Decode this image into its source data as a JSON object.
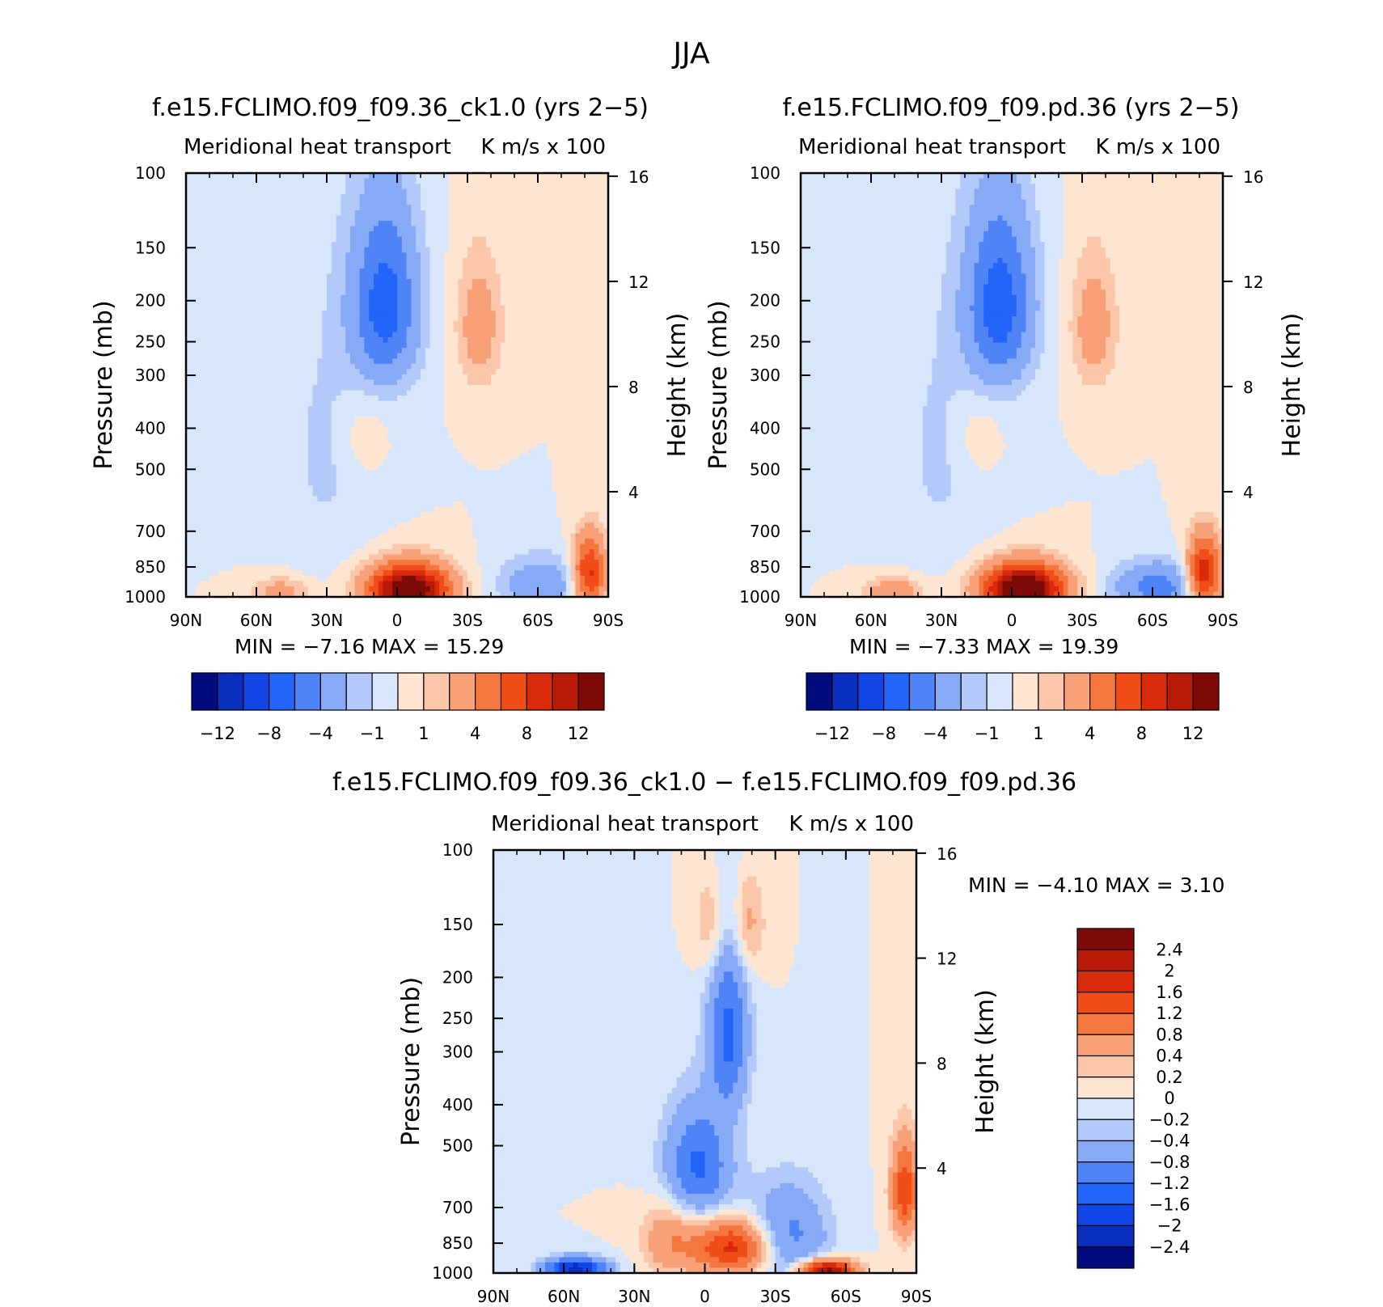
{
  "figure": {
    "title": "JJA",
    "colors": {
      "absolute": [
        "#000b7e",
        "#0a2fbe",
        "#1145e6",
        "#2265f8",
        "#4f84f6",
        "#87aaf7",
        "#b2c9f9",
        "#d8e6fb",
        "#fde5d2",
        "#fbc6a9",
        "#f8a179",
        "#f4773f",
        "#f04d19",
        "#d92b0c",
        "#b81a0a",
        "#7d0a06"
      ],
      "difference": [
        "#000b7e",
        "#0a2fbe",
        "#1145e6",
        "#2265f8",
        "#4f84f6",
        "#87aaf7",
        "#b2c9f9",
        "#d8e6fb",
        "#fde5d2",
        "#fbc6a9",
        "#f8a179",
        "#f4773f",
        "#f04d19",
        "#d92b0c",
        "#b81a0a",
        "#7d0a06"
      ]
    }
  },
  "chart_data": [
    {
      "type": "heatmap",
      "title": "f.e15.FCLIMO.f09_f09.36_ck1.0 (yrs 2−5)",
      "subtitle_left": "Meridional heat transport",
      "subtitle_right": "K m/s x 100",
      "xlabel": "",
      "ylabel": "Pressure (mb)",
      "ylabel_right": "Height (km)",
      "xticks": [
        "90N",
        "60N",
        "30N",
        "0",
        "30S",
        "60S",
        "90S"
      ],
      "xlim": [
        90,
        -90
      ],
      "yticks": [
        100,
        150,
        200,
        250,
        300,
        400,
        500,
        700,
        850,
        1000
      ],
      "ylim": [
        100,
        1000
      ],
      "yticks_right": [
        16,
        12,
        8,
        4
      ],
      "min": "−7.16",
      "max": "15.29",
      "min_label": "MIN =",
      "max_label": "MAX =",
      "colorbar_labels": [
        "−12",
        "−8",
        "−4",
        "−1",
        "1",
        "4",
        "8",
        "12"
      ],
      "features": [
        {
          "lat": 5,
          "p": 205,
          "value": -7.0,
          "dlat": 10,
          "dp": 70
        },
        {
          "lat": -5,
          "p": 960,
          "value": 15.0,
          "dlat": 12,
          "dp": 90
        },
        {
          "lat": -35,
          "p": 230,
          "value": 3.0,
          "dlat": 7,
          "dp": 60
        },
        {
          "lat": -62,
          "p": 935,
          "value": -3.5,
          "dlat": 13,
          "dp": 100
        },
        {
          "lat": 30,
          "p": 450,
          "value": -1.2,
          "dlat": 15,
          "dp": 250
        },
        {
          "lat": 50,
          "p": 970,
          "value": 3.0,
          "dlat": 8,
          "dp": 50
        },
        {
          "lat": -82,
          "p": 880,
          "value": 9.0,
          "dlat": 5,
          "dp": 120
        },
        {
          "lat": 15,
          "p": 420,
          "value": 1.2,
          "dlat": 7,
          "dp": 70
        }
      ]
    },
    {
      "type": "heatmap",
      "title": "f.e15.FCLIMO.f09_f09.pd.36 (yrs 2−5)",
      "subtitle_left": "Meridional heat transport",
      "subtitle_right": "K m/s x 100",
      "xlabel": "",
      "ylabel": "Pressure (mb)",
      "ylabel_right": "Height (km)",
      "xticks": [
        "90N",
        "60N",
        "30N",
        "0",
        "30S",
        "60S",
        "90S"
      ],
      "xlim": [
        90,
        -90
      ],
      "yticks": [
        100,
        150,
        200,
        250,
        300,
        400,
        500,
        700,
        850,
        1000
      ],
      "ylim": [
        100,
        1000
      ],
      "yticks_right": [
        16,
        12,
        8,
        4
      ],
      "min": "−7.33",
      "max": "19.39",
      "min_label": "MIN =",
      "max_label": "MAX =",
      "colorbar_labels": [
        "−12",
        "−8",
        "−4",
        "−1",
        "1",
        "4",
        "8",
        "12"
      ],
      "features": [
        {
          "lat": 5,
          "p": 205,
          "value": -7.2,
          "dlat": 10,
          "dp": 70
        },
        {
          "lat": -5,
          "p": 960,
          "value": 16.0,
          "dlat": 12,
          "dp": 90
        },
        {
          "lat": -35,
          "p": 230,
          "value": 3.0,
          "dlat": 7,
          "dp": 60
        },
        {
          "lat": -62,
          "p": 950,
          "value": -5.0,
          "dlat": 13,
          "dp": 90
        },
        {
          "lat": 30,
          "p": 450,
          "value": -1.2,
          "dlat": 15,
          "dp": 250
        },
        {
          "lat": 50,
          "p": 970,
          "value": 4.0,
          "dlat": 8,
          "dp": 50
        },
        {
          "lat": -82,
          "p": 880,
          "value": 10.0,
          "dlat": 5,
          "dp": 120
        },
        {
          "lat": 15,
          "p": 420,
          "value": 1.2,
          "dlat": 7,
          "dp": 70
        }
      ]
    },
    {
      "type": "heatmap",
      "title": "f.e15.FCLIMO.f09_f09.36_ck1.0 − f.e15.FCLIMO.f09_f09.pd.36",
      "subtitle_left": "Meridional heat transport",
      "subtitle_right": "K m/s x 100",
      "xlabel": "",
      "ylabel": "Pressure (mb)",
      "ylabel_right": "Height (km)",
      "xticks": [
        "90N",
        "60N",
        "30N",
        "0",
        "30S",
        "60S",
        "90S"
      ],
      "xlim": [
        90,
        -90
      ],
      "yticks": [
        100,
        150,
        200,
        250,
        300,
        400,
        500,
        700,
        850,
        1000
      ],
      "ylim": [
        100,
        1000
      ],
      "yticks_right": [
        16,
        12,
        8,
        4
      ],
      "min": "−4.10",
      "max": "3.10",
      "min_label": "MIN =",
      "max_label": "MAX =",
      "colorbar_labels": [
        "2.4",
        "2",
        "1.6",
        "1.2",
        "0.8",
        "0.4",
        "0.2",
        "0",
        "−0.2",
        "−0.4",
        "−0.8",
        "−1.2",
        "−1.6",
        "−2",
        "−2.4"
      ],
      "features": [
        {
          "lat": -12,
          "p": 870,
          "value": 1.8,
          "dlat": 12,
          "dp": 90
        },
        {
          "lat": -52,
          "p": 985,
          "value": 2.6,
          "dlat": 8,
          "dp": 40
        },
        {
          "lat": -85,
          "p": 640,
          "value": 1.5,
          "dlat": 4,
          "dp": 120
        },
        {
          "lat": 55,
          "p": 975,
          "value": -2.2,
          "dlat": 9,
          "dp": 40
        },
        {
          "lat": 3,
          "p": 560,
          "value": -1.3,
          "dlat": 10,
          "dp": 120
        },
        {
          "lat": -35,
          "p": 820,
          "value": -1.0,
          "dlat": 12,
          "dp": 150
        },
        {
          "lat": -10,
          "p": 270,
          "value": -1.3,
          "dlat": 6,
          "dp": 90
        },
        {
          "lat": -18,
          "p": 150,
          "value": 0.6,
          "dlat": 5,
          "dp": 30
        },
        {
          "lat": -3,
          "p": 150,
          "value": 0.5,
          "dlat": 5,
          "dp": 30
        },
        {
          "lat": 15,
          "p": 830,
          "value": 0.7,
          "dlat": 8,
          "dp": 120
        }
      ]
    }
  ]
}
